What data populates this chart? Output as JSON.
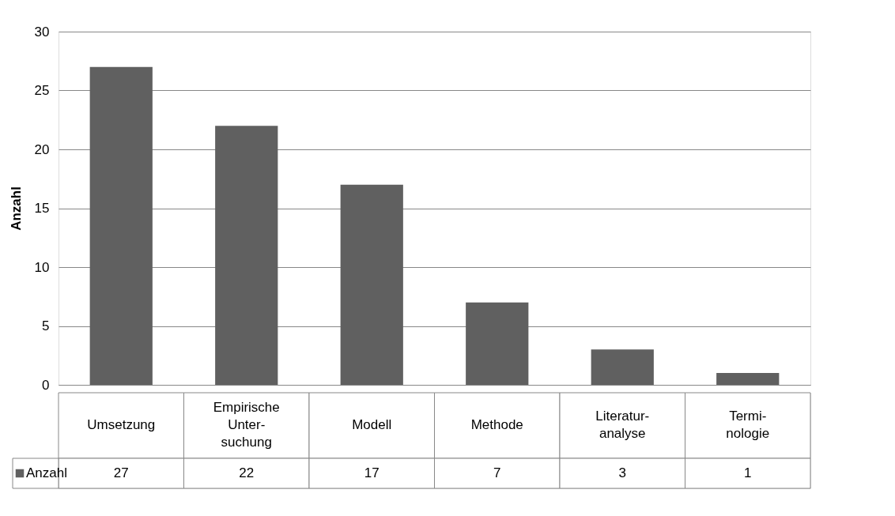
{
  "chart_data": {
    "type": "bar",
    "ylabel": "Anzahl",
    "categories": [
      "Umsetzung",
      "Empirische\nUnter-\nsuchung",
      "Modell",
      "Methode",
      "Literatur-\nanalyse",
      "Termi-\nnologie"
    ],
    "series": [
      {
        "name": "Anzahl",
        "color": "#606060",
        "values": [
          27,
          22,
          17,
          7,
          3,
          1
        ]
      }
    ],
    "ylim": [
      0,
      30
    ],
    "yticks": [
      0,
      5,
      10,
      15,
      20,
      25,
      30
    ],
    "grid": "y",
    "data_labels": true,
    "legend": "bottom left"
  }
}
